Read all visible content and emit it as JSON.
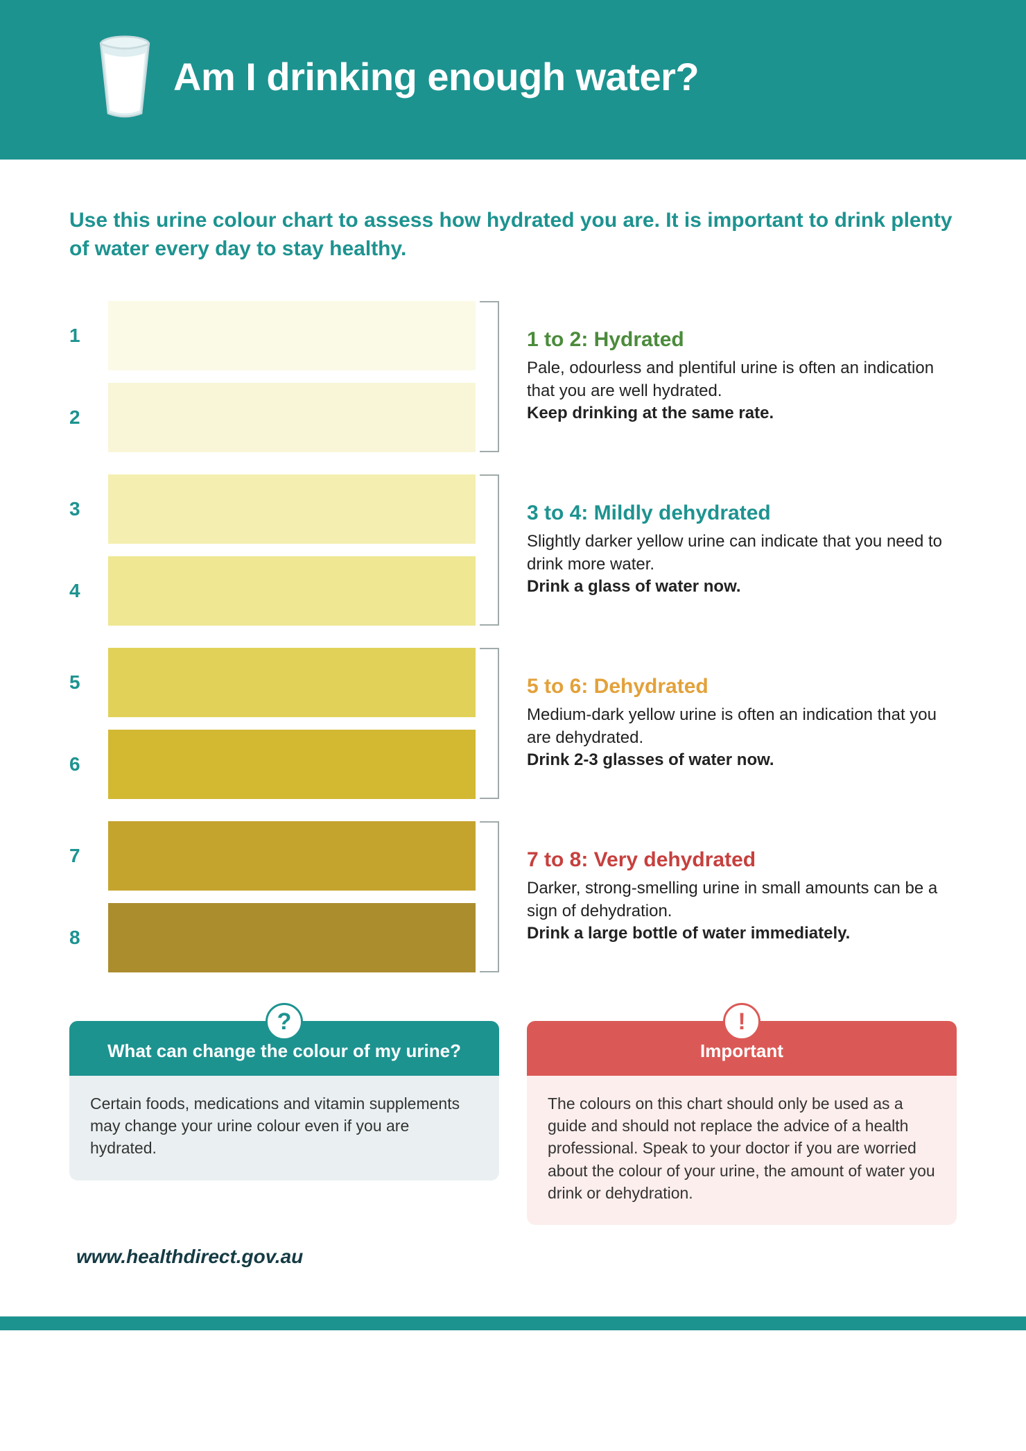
{
  "colors": {
    "header_bg": "#1d9390",
    "accent_teal": "#1d9390",
    "white": "#ffffff",
    "bracket": "#a0aaaa",
    "info_teal_head": "#1d9390",
    "info_teal_body": "#eaf0f1",
    "info_red_head": "#da5956",
    "info_red_body": "#fceeec",
    "footer_bar": "#1d9390"
  },
  "header": {
    "title": "Am I drinking enough water?"
  },
  "intro": "Use this urine colour chart to assess how hydrated you are. It is important to drink plenty of water every day to stay healthy.",
  "groups": [
    {
      "swatches": [
        {
          "num": "1",
          "color": "#fbfae7"
        },
        {
          "num": "2",
          "color": "#f9f6d7"
        }
      ],
      "title": "1 to 2: Hydrated",
      "title_color": "#4b8b3b",
      "body": "Pale, odourless and plentiful urine is often an indication that you are well hydrated.",
      "action": "Keep drinking at the same rate."
    },
    {
      "swatches": [
        {
          "num": "3",
          "color": "#f4efb0"
        },
        {
          "num": "4",
          "color": "#efe792"
        }
      ],
      "title": "3 to 4: Mildly dehydrated",
      "title_color": "#1d9390",
      "body": "Slightly darker yellow urine can indicate that you need to drink more water.",
      "action": "Drink a glass of water now."
    },
    {
      "swatches": [
        {
          "num": "5",
          "color": "#e1d158"
        },
        {
          "num": "6",
          "color": "#d3b832"
        }
      ],
      "title": "5 to 6: Dehydrated",
      "title_color": "#e3a13a",
      "body": "Medium-dark yellow urine is often an indication that you are dehydrated.",
      "action": "Drink 2-3 glasses of water now."
    },
    {
      "swatches": [
        {
          "num": "7",
          "color": "#c5a42e"
        },
        {
          "num": "8",
          "color": "#ab8d2e"
        }
      ],
      "title": "7 to 8: Very dehydrated",
      "title_color": "#c6403e",
      "body": "Darker, strong-smelling urine in small amounts can be a sign of dehydration.",
      "action": "Drink a large bottle of water immediately."
    }
  ],
  "info_boxes": [
    {
      "badge": "?",
      "badge_color": "#1d9390",
      "head_bg": "#1d9390",
      "body_bg": "#eaf0f1",
      "title": "What can change the colour of my urine?",
      "body": "Certain foods, medications and vitamin supplements may change your urine colour even if you are hydrated."
    },
    {
      "badge": "!",
      "badge_color": "#da5956",
      "head_bg": "#da5956",
      "body_bg": "#fceeec",
      "title": "Important",
      "body": "The colours on this chart should only be used as a guide and should not replace the advice of a health professional. Speak to your doctor if you are worried about the colour of your urine, the amount of water you drink or dehydration."
    }
  ],
  "footer": {
    "url": "www.healthdirect.gov.au"
  }
}
